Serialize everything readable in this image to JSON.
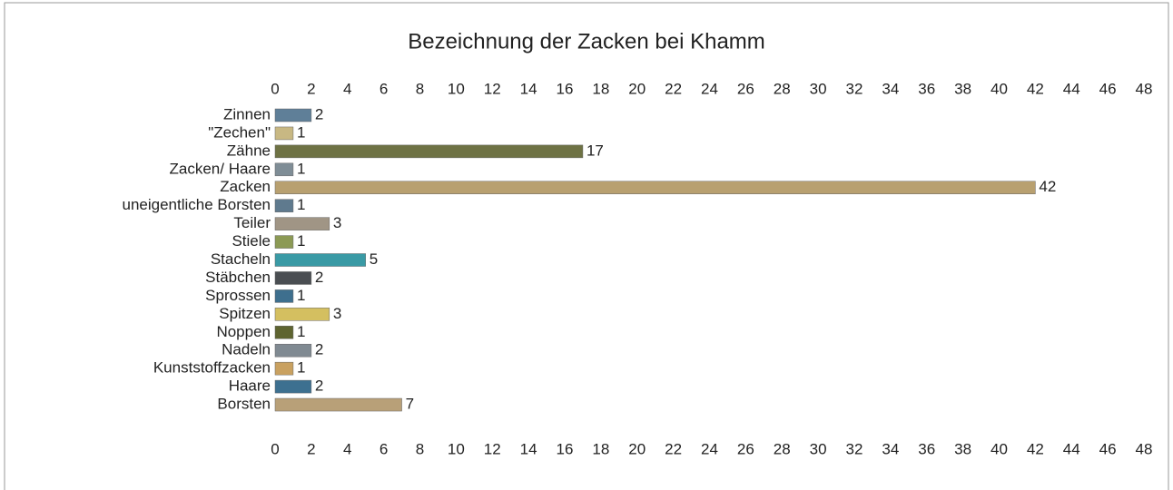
{
  "chart_data": {
    "type": "bar",
    "orientation": "horizontal",
    "title": "Bezeichnung der Zacken bei Khamm",
    "categories": [
      "Zinnen",
      "\"Zechen\"",
      "Zähne",
      "Zacken/ Haare",
      "Zacken",
      "uneigentliche Borsten",
      "Teiler",
      "Stiele",
      "Stacheln",
      "Stäbchen",
      "Sprossen",
      "Spitzen",
      "Noppen",
      "Nadeln",
      "Kunststoffzacken",
      "Haare",
      "Borsten"
    ],
    "values": [
      2,
      1,
      17,
      1,
      42,
      1,
      3,
      1,
      5,
      2,
      1,
      3,
      1,
      2,
      1,
      2,
      7
    ],
    "colors": [
      "#5f7f98",
      "#c8b883",
      "#6e7244",
      "#7f8d96",
      "#b8a070",
      "#5f7a8e",
      "#a09585",
      "#8c9a55",
      "#3a9aa5",
      "#4a4e52",
      "#3e6f8e",
      "#d4bf60",
      "#5e6430",
      "#808a92",
      "#c9a160",
      "#3d7090",
      "#b8a078"
    ],
    "xlim": [
      0,
      48
    ],
    "xticks": [
      0,
      2,
      4,
      6,
      8,
      10,
      12,
      14,
      16,
      18,
      20,
      22,
      24,
      26,
      28,
      30,
      32,
      34,
      36,
      38,
      40,
      42,
      44,
      46,
      48
    ],
    "grid": false
  }
}
